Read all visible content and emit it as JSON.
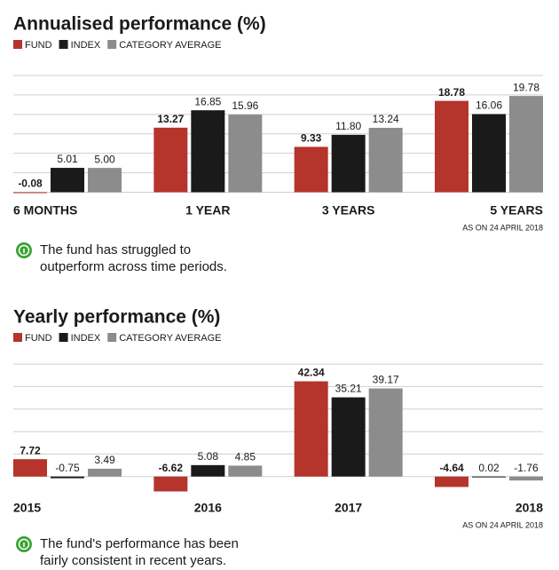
{
  "chart_data": [
    {
      "type": "bar",
      "title": "Annualised performance (%)",
      "categories": [
        "6 MONTHS",
        "1 YEAR",
        "3 YEARS",
        "5 YEARS"
      ],
      "series": [
        {
          "name": "FUND",
          "color": "#b5342b",
          "values": [
            -0.08,
            13.27,
            9.33,
            18.78
          ],
          "value_labels": [
            "-0.08",
            "13.27",
            "9.33",
            "18.78"
          ]
        },
        {
          "name": "INDEX",
          "color": "#1a1a1a",
          "values": [
            5.01,
            16.85,
            11.8,
            16.06
          ],
          "value_labels": [
            "5.01",
            "16.85",
            "11.80",
            "16.06"
          ]
        },
        {
          "name": "CATEGORY AVERAGE",
          "color": "#8c8c8c",
          "values": [
            5.0,
            15.96,
            13.24,
            19.78
          ],
          "value_labels": [
            "5.00",
            "15.96",
            "13.24",
            "19.78"
          ]
        }
      ],
      "ylim": [
        -1,
        24
      ],
      "yticks": [
        0,
        4,
        8,
        12,
        16,
        20,
        24
      ],
      "grid": true,
      "annotation": "AS ON 24 APRIL 2018",
      "note": [
        "The fund has struggled to",
        "outperform across time periods."
      ]
    },
    {
      "type": "bar",
      "title": "Yearly performance (%)",
      "categories": [
        "2015",
        "2016",
        "2017",
        "2018"
      ],
      "series": [
        {
          "name": "FUND",
          "color": "#b5342b",
          "values": [
            7.72,
            -6.62,
            42.34,
            -4.64
          ],
          "value_labels": [
            "7.72",
            "-6.62",
            "42.34",
            "-4.64"
          ]
        },
        {
          "name": "INDEX",
          "color": "#1a1a1a",
          "values": [
            -0.75,
            5.08,
            35.21,
            0.02
          ],
          "value_labels": [
            "-0.75",
            "5.08",
            "35.21",
            "0.02"
          ]
        },
        {
          "name": "CATEGORY AVERAGE",
          "color": "#8c8c8c",
          "values": [
            3.49,
            4.85,
            39.17,
            -1.76
          ],
          "value_labels": [
            "3.49",
            "4.85",
            "39.17",
            "-1.76"
          ]
        }
      ],
      "ylim": [
        -8,
        52
      ],
      "yticks": [
        0,
        10,
        20,
        30,
        40,
        50
      ],
      "grid": true,
      "annotation": "AS ON 24 APRIL 2018",
      "note": [
        "The fund's performance has been",
        "fairly consistent in recent years."
      ]
    }
  ]
}
